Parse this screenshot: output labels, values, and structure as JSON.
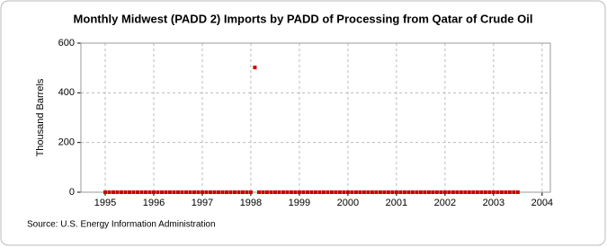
{
  "chart_data": {
    "type": "scatter",
    "title": "Monthly Midwest (PADD 2) Imports by PADD of Processing from Qatar of Crude Oil",
    "y_label": "Thousand Barrels",
    "source": "Source: U.S. Energy Information Administration",
    "x": [
      1995,
      1995.083,
      1995.167,
      1995.25,
      1995.333,
      1995.417,
      1995.5,
      1995.583,
      1995.667,
      1995.75,
      1995.833,
      1995.917,
      1996,
      1996.083,
      1996.167,
      1996.25,
      1996.333,
      1996.417,
      1996.5,
      1996.583,
      1996.667,
      1996.75,
      1996.833,
      1996.917,
      1997,
      1997.083,
      1997.167,
      1997.25,
      1997.333,
      1997.417,
      1997.5,
      1997.583,
      1997.667,
      1997.75,
      1997.833,
      1997.917,
      1998,
      1998.083,
      1998.167,
      1998.25,
      1998.333,
      1998.417,
      1998.5,
      1998.583,
      1998.667,
      1998.75,
      1998.833,
      1998.917,
      1999,
      1999.083,
      1999.167,
      1999.25,
      1999.333,
      1999.417,
      1999.5,
      1999.583,
      1999.667,
      1999.75,
      1999.833,
      1999.917,
      2000,
      2000.083,
      2000.167,
      2000.25,
      2000.333,
      2000.417,
      2000.5,
      2000.583,
      2000.667,
      2000.75,
      2000.833,
      2000.917,
      2001,
      2001.083,
      2001.167,
      2001.25,
      2001.333,
      2001.417,
      2001.5,
      2001.583,
      2001.667,
      2001.75,
      2001.833,
      2001.917,
      2002,
      2002.083,
      2002.167,
      2002.25,
      2002.333,
      2002.417,
      2002.5,
      2002.583,
      2002.667,
      2002.75,
      2002.833,
      2002.917,
      2003,
      2003.083,
      2003.167,
      2003.25,
      2003.333,
      2003.417,
      2003.5
    ],
    "series": [
      {
        "color": "#cc0000",
        "values": [
          0,
          0,
          0,
          0,
          0,
          0,
          0,
          0,
          0,
          0,
          0,
          0,
          0,
          0,
          0,
          0,
          0,
          0,
          0,
          0,
          0,
          0,
          0,
          0,
          0,
          0,
          0,
          0,
          0,
          0,
          0,
          0,
          0,
          0,
          0,
          0,
          0,
          502,
          0,
          0,
          0,
          0,
          0,
          0,
          0,
          0,
          0,
          0,
          0,
          0,
          0,
          0,
          0,
          0,
          0,
          0,
          0,
          0,
          0,
          0,
          0,
          0,
          0,
          0,
          0,
          0,
          0,
          0,
          0,
          0,
          0,
          0,
          0,
          0,
          0,
          0,
          0,
          0,
          0,
          0,
          0,
          0,
          0,
          0,
          0,
          0,
          0,
          0,
          0,
          0,
          0,
          0,
          0,
          0,
          0,
          0,
          0,
          0,
          0,
          0,
          0,
          0,
          0
        ]
      }
    ],
    "xlim": [
      1994.5,
      2004.17
    ],
    "xticks": [
      1995,
      1996,
      1997,
      1998,
      1999,
      2000,
      2001,
      2002,
      2003,
      2004
    ],
    "ylim": [
      0,
      600
    ],
    "yticks": [
      0,
      200,
      400,
      600
    ],
    "grid": true
  }
}
